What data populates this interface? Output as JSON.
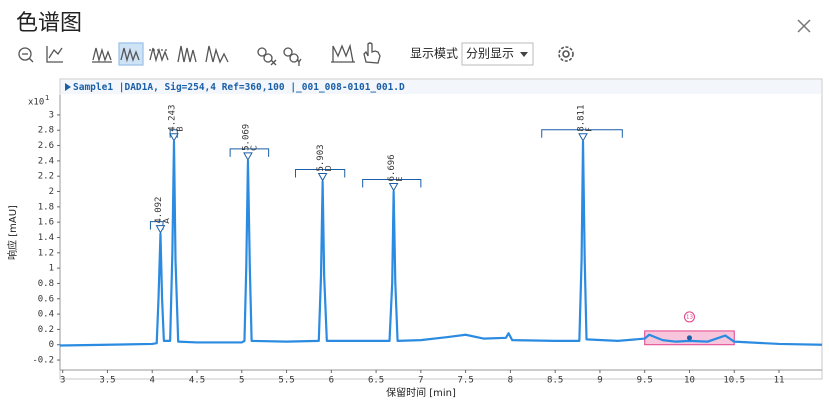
{
  "window": {
    "title": "色谱图",
    "display_mode_label": "显示模式",
    "display_mode_value": "分别显示"
  },
  "chart_data": {
    "type": "line",
    "header": "Sample1 |DAD1A, Sig=254,4 Ref=360,100 |_001_008-0101_001.D",
    "y_scale_label": "x10",
    "y_scale_exp": "1",
    "x_label": "保留时间 [min]",
    "y_label": "响应 [mAU]",
    "xlim": [
      2.97,
      11.48
    ],
    "ylim": [
      -0.33,
      3.26
    ],
    "xticks": [
      3,
      3.5,
      4,
      4.5,
      5,
      5.5,
      6,
      6.5,
      7,
      7.5,
      8,
      8.5,
      9,
      9.5,
      10,
      10.5,
      11
    ],
    "yticks": [
      -0.2,
      0,
      0.2,
      0.4,
      0.6,
      0.8,
      1,
      1.2,
      1.4,
      1.6,
      1.8,
      2,
      2.2,
      2.4,
      2.6,
      2.8,
      3
    ],
    "grid": false,
    "x": [
      2.97,
      3.5,
      4.0,
      4.05,
      4.07,
      4.092,
      4.11,
      4.13,
      4.2,
      4.225,
      4.243,
      4.26,
      4.29,
      4.5,
      5.0,
      5.03,
      5.05,
      5.069,
      5.09,
      5.11,
      5.5,
      5.86,
      5.885,
      5.903,
      5.92,
      5.95,
      6.3,
      6.65,
      6.68,
      6.696,
      6.715,
      6.74,
      7.0,
      7.3,
      7.5,
      7.7,
      7.95,
      7.98,
      8.02,
      8.5,
      8.77,
      8.795,
      8.811,
      8.83,
      8.85,
      9.2,
      9.5,
      9.55,
      9.7,
      9.85,
      10.0,
      10.2,
      10.4,
      10.5,
      11.0,
      11.48
    ],
    "series": [
      {
        "color": "#2b8be0",
        "values": [
          -0.01,
          0.0,
          0.01,
          0.02,
          0.6,
          1.45,
          0.6,
          0.05,
          0.05,
          1.2,
          2.65,
          1.1,
          0.04,
          0.03,
          0.03,
          0.05,
          1.0,
          2.4,
          1.0,
          0.05,
          0.04,
          0.05,
          0.9,
          2.13,
          0.9,
          0.05,
          0.05,
          0.05,
          0.8,
          2.0,
          0.8,
          0.05,
          0.06,
          0.1,
          0.13,
          0.08,
          0.09,
          0.15,
          0.06,
          0.05,
          0.05,
          1.1,
          2.65,
          1.1,
          0.07,
          0.05,
          0.08,
          0.13,
          0.06,
          0.04,
          0.05,
          0.04,
          0.12,
          0.04,
          0.01,
          0.0
        ]
      }
    ],
    "peaks": [
      {
        "rt": 4.092,
        "name": "A",
        "height": 1.45,
        "window": [
          3.98,
          4.12
        ]
      },
      {
        "rt": 4.243,
        "name": "B",
        "height": 2.65,
        "window": [
          4.2,
          4.28
        ]
      },
      {
        "rt": 5.069,
        "name": "C",
        "height": 2.4,
        "window": [
          4.87,
          5.3
        ]
      },
      {
        "rt": 5.903,
        "name": "D",
        "height": 2.13,
        "window": [
          5.6,
          6.15
        ]
      },
      {
        "rt": 6.696,
        "name": "E",
        "height": 2.0,
        "window": [
          6.35,
          7.0
        ]
      },
      {
        "rt": 8.811,
        "name": "F",
        "height": 2.65,
        "window": [
          8.35,
          9.25
        ]
      }
    ],
    "highlight": {
      "x": [
        9.5,
        10.5
      ],
      "y": [
        0,
        0.18
      ],
      "label": "13"
    }
  }
}
